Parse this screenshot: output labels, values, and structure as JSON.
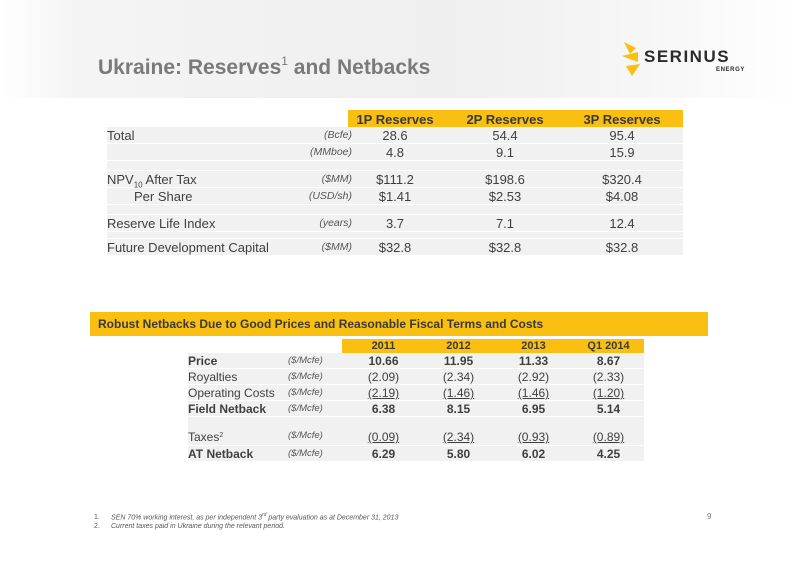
{
  "title": {
    "main": "Ukraine: Reserves",
    "sup": "1",
    "tail": " and Netbacks"
  },
  "logo": {
    "word": "SERINUS",
    "sub": "ENERGY",
    "color": "#f9bf11"
  },
  "reserves": {
    "columns": [
      "1P Reserves",
      "2P Reserves",
      "3P Reserves"
    ],
    "rows": [
      {
        "label": "Total",
        "unit": "(Bcfe)",
        "values": [
          "28.6",
          "54.4",
          "95.4"
        ]
      },
      {
        "label": "",
        "unit": "(MMboe)",
        "values": [
          "4.8",
          "9.1",
          "15.9"
        ]
      },
      {
        "label": "NPV",
        "sub": "10",
        "label_tail": " After Tax",
        "unit": "($MM)",
        "values": [
          "$111.2",
          "$198.6",
          "$320.4"
        ]
      },
      {
        "label": "Per Share",
        "unit": "(USD/sh)",
        "values": [
          "$1.41",
          "$2.53",
          "$4.08"
        ]
      },
      {
        "label": "Reserve Life Index",
        "unit": "(years)",
        "values": [
          "3.7",
          "7.1",
          "12.4"
        ]
      },
      {
        "label": "Future Development Capital",
        "unit": "($MM)",
        "values": [
          "$32.8",
          "$32.8",
          "$32.8"
        ]
      }
    ]
  },
  "netbacks": {
    "banner": "Robust Netbacks Due to Good Prices and Reasonable Fiscal Terms and Costs",
    "columns": [
      "2011",
      "2012",
      "2013",
      "Q1 2014"
    ],
    "rows": [
      {
        "label": "Price",
        "unit": "($/Mcfe)",
        "values": [
          "10.66",
          "11.95",
          "11.33",
          "8.67"
        ]
      },
      {
        "label": "Royalties",
        "unit": "($/Mcfe)",
        "values": [
          "(2.09)",
          "(2.34)",
          "(2.92)",
          "(2.33)"
        ]
      },
      {
        "label": "Operating Costs",
        "unit": "($/Mcfe)",
        "values": [
          "(2.19)",
          "(1.46)",
          "(1.46)",
          "(1.20)"
        ]
      },
      {
        "label": "Field Netback",
        "unit": "($/Mcfe)",
        "values": [
          "6.38",
          "8.15",
          "6.95",
          "5.14"
        ]
      },
      {
        "label": "Taxes",
        "sup": "2",
        "unit": "($/Mcfe)",
        "values": [
          "(0.09)",
          "(2.34)",
          "(0.93)",
          "(0.89)"
        ]
      },
      {
        "label": "AT Netback",
        "unit": "($/Mcfe)",
        "values": [
          "6.29",
          "5.80",
          "6.02",
          "4.25"
        ]
      }
    ]
  },
  "footnotes": [
    {
      "num": "1.",
      "text_a": "SEN 70% working interest, as per independent 3",
      "sup": "rd",
      "text_b": " party evaluation as at December 31, 2013"
    },
    {
      "num": "2.",
      "text": "Current taxes paid in Ukraine during the relevant period."
    }
  ],
  "page_number": "9"
}
